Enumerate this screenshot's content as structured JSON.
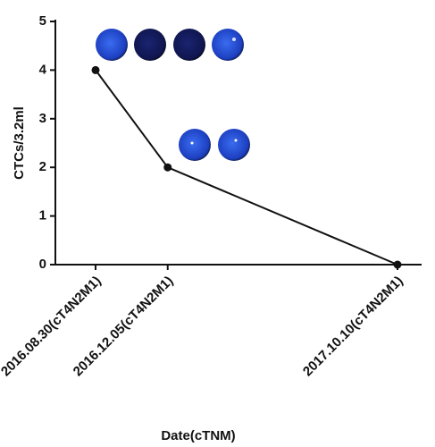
{
  "chart_data": {
    "type": "line",
    "x_label": "Date(cTNM)",
    "y_label": "CTCs/3.2ml",
    "categories": [
      "2016.08.30(cT4N2M1)",
      "2016.12.05(cT4N2M1)",
      "2017.10.10(cT4N2M1)"
    ],
    "values": [
      4,
      2,
      0
    ],
    "color": "#111111",
    "ylim": [
      0,
      5
    ],
    "yticks": [
      0,
      1,
      2,
      3,
      4,
      5
    ]
  }
}
